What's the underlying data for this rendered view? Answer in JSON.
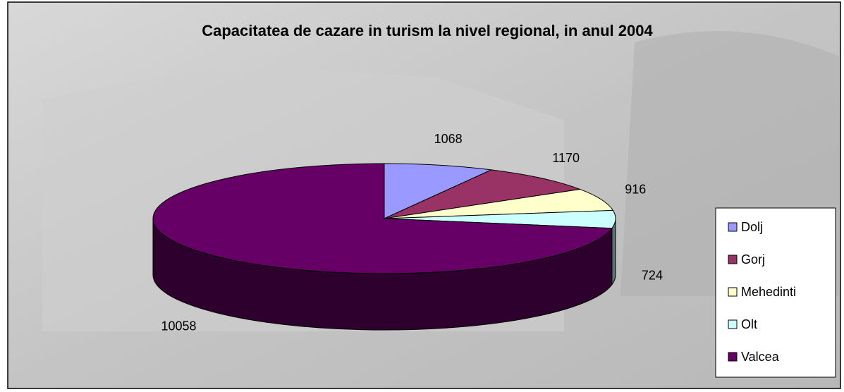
{
  "chart_data": {
    "type": "pie3d",
    "title": "Capacitatea de cazare in turism la nivel regional, in anul 2004",
    "categories": [
      "Dolj",
      "Gorj",
      "Mehedinti",
      "Olt",
      "Valcea"
    ],
    "values": [
      1068,
      1170,
      916,
      724,
      10058
    ],
    "colors": [
      "#9999ff",
      "#993366",
      "#ffffcc",
      "#ccffff",
      "#660066"
    ],
    "legend": "right"
  }
}
